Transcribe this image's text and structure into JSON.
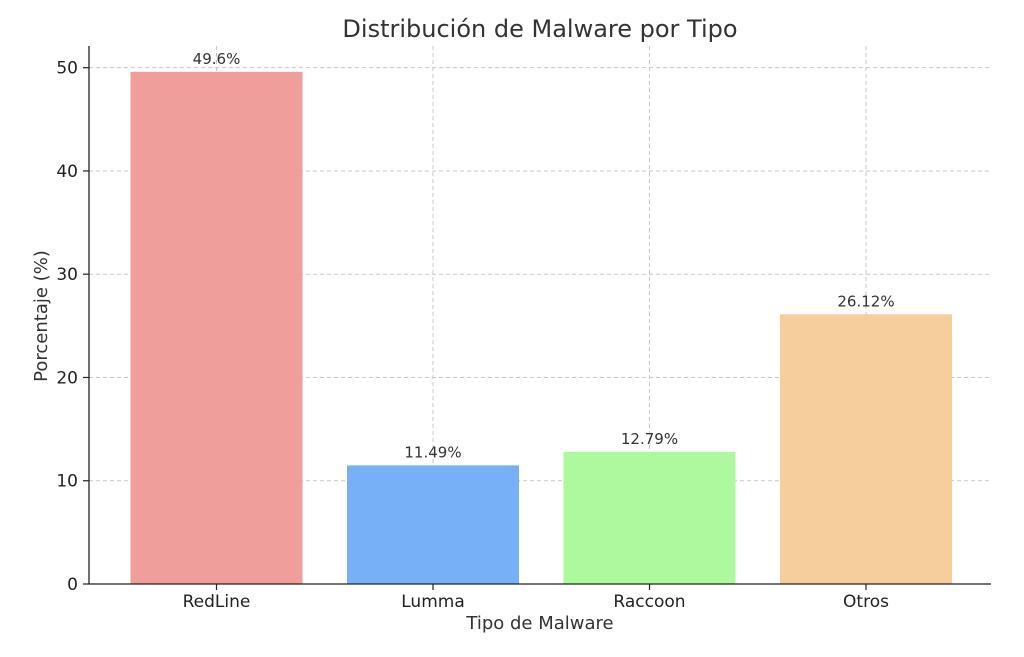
{
  "chart_data": {
    "type": "bar",
    "title": "Distribución de Malware por Tipo",
    "xlabel": "Tipo de Malware",
    "ylabel": "Porcentaje (%)",
    "categories": [
      "RedLine",
      "Lumma",
      "Raccoon",
      "Otros"
    ],
    "values": [
      49.6,
      11.49,
      12.79,
      26.12
    ],
    "value_labels": [
      "49.6%",
      "11.49%",
      "12.79%",
      "26.12%"
    ],
    "colors": [
      "#f09e9b",
      "#78b0f8",
      "#aef89e",
      "#f6cd9c"
    ],
    "ylim": [
      0,
      52.1
    ],
    "yticks": [
      0,
      10,
      20,
      30,
      40,
      50
    ],
    "grid": true
  }
}
